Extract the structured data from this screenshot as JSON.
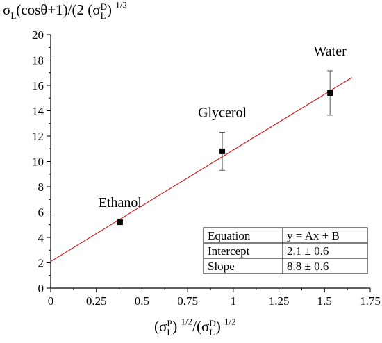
{
  "chart_data": {
    "type": "scatter",
    "ylabel": {
      "sym": "σ",
      "sub": "L",
      "text1": "(cosθ+1)/(2 (",
      "sym2": "σ",
      "sup2": "D",
      "sub2": "L",
      "text2": ")",
      "power": "1/2"
    },
    "xlabel": {
      "text0": "(",
      "sym": "σ",
      "sup": "P",
      "sub": "L",
      "text1": ")",
      "power1": "1/2",
      "text2": "/(",
      "sym2": "σ",
      "sup2": "D",
      "sub2": "L",
      "text3": ")",
      "power2": "1/2"
    },
    "xlim": [
      0,
      1.75
    ],
    "ylim": [
      0,
      20
    ],
    "x_ticks": [
      "0",
      "0.25",
      "0.5",
      "0.75",
      "1",
      "1.25",
      "1.5",
      "1.75"
    ],
    "x_tick_values": [
      0,
      0.25,
      0.5,
      0.75,
      1,
      1.25,
      1.5,
      1.75
    ],
    "y_ticks": [
      "0",
      "2",
      "4",
      "6",
      "8",
      "10",
      "12",
      "14",
      "16",
      "18",
      "20"
    ],
    "y_tick_values": [
      0,
      2,
      4,
      6,
      8,
      10,
      12,
      14,
      16,
      18,
      20
    ],
    "points": [
      {
        "label": "Ethanol",
        "x": 0.38,
        "y": 5.2,
        "err": 0
      },
      {
        "label": "Glycerol",
        "x": 0.94,
        "y": 10.8,
        "err": 1.5
      },
      {
        "label": "Water",
        "x": 1.53,
        "y": 15.4,
        "err": 1.75
      }
    ],
    "fit_line": {
      "slope": 8.8,
      "intercept": 2.1,
      "x_range": [
        0,
        1.65
      ],
      "color": "#cc2222"
    },
    "marker_color": "#000000",
    "grid": false,
    "legend_table": {
      "rows": [
        [
          "Equation",
          "y = Ax + B"
        ],
        [
          "Intercept",
          "2.1 ± 0.6"
        ],
        [
          "Slope",
          "8.8 ± 0.6"
        ]
      ]
    }
  }
}
